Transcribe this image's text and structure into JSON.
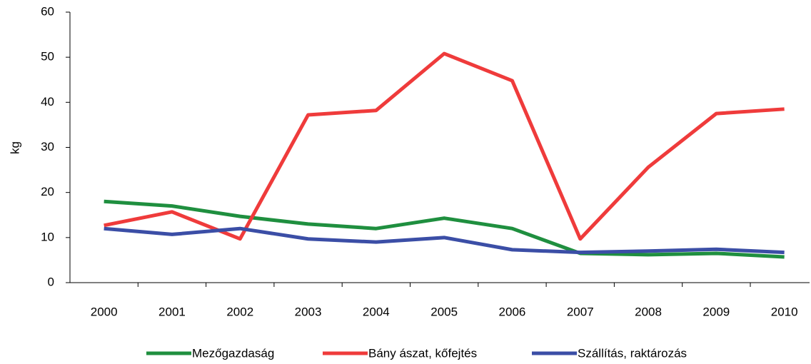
{
  "chart_data": {
    "type": "line",
    "y_label": "kg",
    "categories": [
      "2000",
      "2001",
      "2002",
      "2003",
      "2004",
      "2005",
      "2006",
      "2007",
      "2008",
      "2009",
      "2010"
    ],
    "series": [
      {
        "name": "Mezőgazdaság",
        "color": "#1f8f3f",
        "values": [
          18,
          17,
          14.7,
          13,
          12,
          14.3,
          12,
          6.5,
          6.2,
          6.5,
          5.7
        ]
      },
      {
        "name": "Bány ászat, kőfejtés",
        "color": "#ef3b3b",
        "values": [
          12.7,
          15.7,
          9.7,
          37.2,
          38.2,
          50.8,
          44.8,
          9.7,
          25.6,
          37.5,
          38.5
        ]
      },
      {
        "name": "Szállítás, raktározás",
        "color": "#3b4ea6",
        "values": [
          12,
          10.7,
          12,
          9.7,
          9,
          10,
          7.3,
          6.7,
          7,
          7.4,
          6.7
        ]
      }
    ],
    "ylim": [
      0,
      60
    ],
    "yticks": [
      0,
      10,
      20,
      30,
      40,
      50,
      60
    ],
    "grid": false,
    "legend": "bottom"
  }
}
